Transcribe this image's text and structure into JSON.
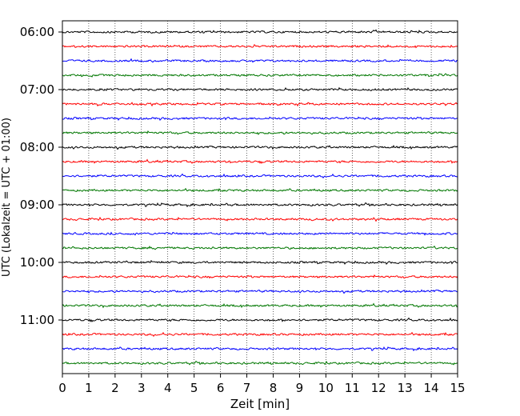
{
  "chart_data": {
    "type": "line",
    "title": "",
    "xlabel": "Zeit  [min]",
    "ylabel": "UTC (Lokalzeit = UTC + 01:00)",
    "xlim": [
      0,
      15
    ],
    "xticks": [
      "0",
      "1",
      "2",
      "3",
      "4",
      "5",
      "6",
      "7",
      "8",
      "9",
      "10",
      "11",
      "12",
      "13",
      "14",
      "15"
    ],
    "yticks": [
      "06:00",
      "07:00",
      "08:00",
      "09:00",
      "10:00",
      "11:00"
    ],
    "grid": "vertical dotted at each minute",
    "trace_start": "06:00",
    "trace_interval_minutes": 15,
    "trace_count": 24,
    "trace_colors": [
      "#000000",
      "#ff0000",
      "#0000ff",
      "#007700"
    ]
  }
}
